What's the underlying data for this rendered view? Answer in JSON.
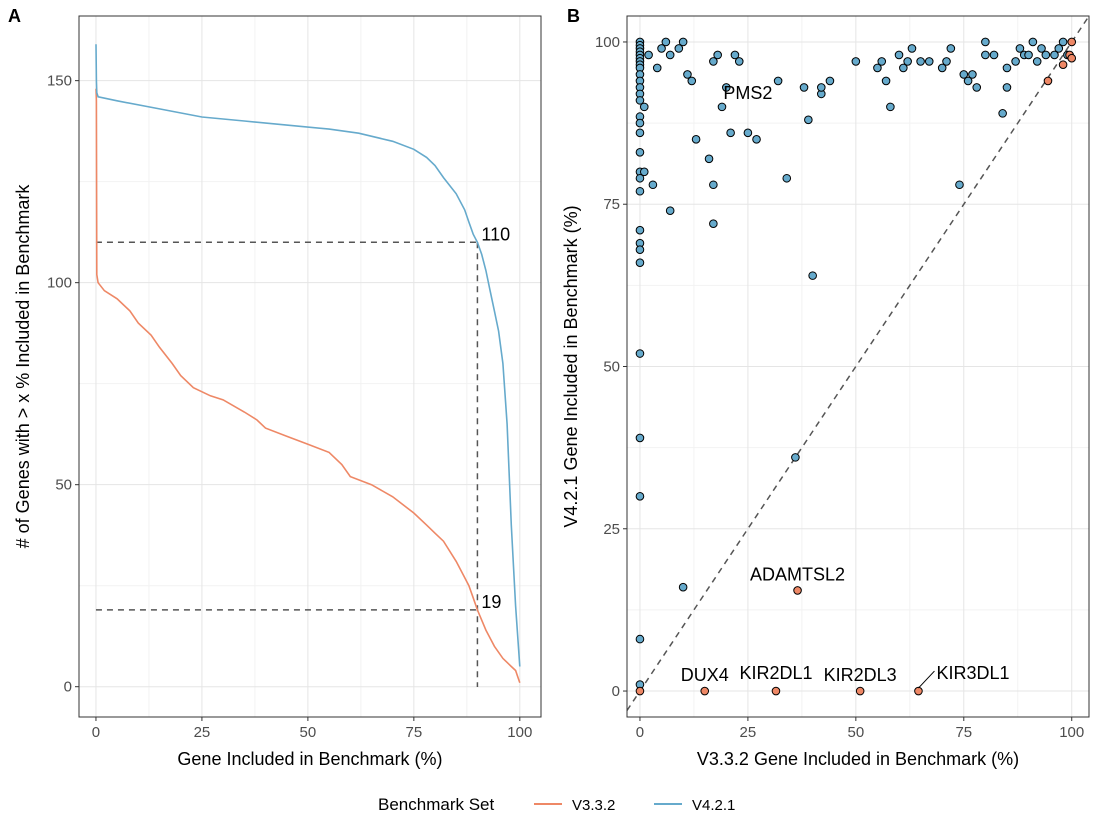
{
  "colors": {
    "v332": "#EE8866",
    "v421": "#66AACC",
    "grid_major": "#e5e5e5",
    "grid_minor": "#f2f2f2",
    "dashed": "#555555"
  },
  "legend": {
    "title": "Benchmark Set",
    "entries": [
      "V3.3.2",
      "V4.2.1"
    ]
  },
  "chart_data": [
    {
      "panel": "A",
      "type": "line",
      "title": "",
      "xlabel": "Gene Included in Benchmark (%)",
      "ylabel": "# of Genes with > x % Included in Benchmark",
      "xlim": [
        -4,
        105
      ],
      "ylim": [
        -7.5,
        166
      ],
      "xticks": [
        0,
        25,
        50,
        75,
        100
      ],
      "yticks": [
        0,
        50,
        100,
        150
      ],
      "grid": true,
      "series": [
        {
          "name": "V3.3.2",
          "color_key": "v332",
          "points": [
            [
              0,
              148
            ],
            [
              0.1,
              145
            ],
            [
              0.2,
              102
            ],
            [
              0.5,
              100
            ],
            [
              2,
              98
            ],
            [
              5,
              96
            ],
            [
              8,
              93
            ],
            [
              10,
              90
            ],
            [
              13,
              87
            ],
            [
              15,
              84
            ],
            [
              18,
              80
            ],
            [
              20,
              77
            ],
            [
              23,
              74
            ],
            [
              27,
              72
            ],
            [
              30,
              71
            ],
            [
              35,
              68
            ],
            [
              38,
              66
            ],
            [
              40,
              64
            ],
            [
              45,
              62
            ],
            [
              50,
              60
            ],
            [
              55,
              58
            ],
            [
              58,
              55
            ],
            [
              60,
              52
            ],
            [
              65,
              50
            ],
            [
              70,
              47
            ],
            [
              75,
              43
            ],
            [
              78,
              40
            ],
            [
              80,
              38
            ],
            [
              82,
              36
            ],
            [
              85,
              31
            ],
            [
              87,
              27
            ],
            [
              88,
              25
            ],
            [
              89,
              22
            ],
            [
              90,
              19
            ],
            [
              92,
              14
            ],
            [
              94,
              10
            ],
            [
              96,
              7
            ],
            [
              98,
              5
            ],
            [
              99,
              4
            ],
            [
              100,
              1
            ]
          ]
        },
        {
          "name": "V4.2.1",
          "color_key": "v421",
          "points": [
            [
              0,
              159
            ],
            [
              0.1,
              150
            ],
            [
              0.2,
              147
            ],
            [
              0.5,
              146
            ],
            [
              5,
              145
            ],
            [
              15,
              143
            ],
            [
              25,
              141
            ],
            [
              35,
              140
            ],
            [
              45,
              139
            ],
            [
              55,
              138
            ],
            [
              62,
              137
            ],
            [
              70,
              135
            ],
            [
              75,
              133
            ],
            [
              78,
              131
            ],
            [
              80,
              129
            ],
            [
              82,
              126
            ],
            [
              85,
              122
            ],
            [
              87,
              118
            ],
            [
              88,
              115
            ],
            [
              89,
              112
            ],
            [
              90,
              110
            ],
            [
              91,
              107
            ],
            [
              92,
              103
            ],
            [
              93,
              98
            ],
            [
              94,
              93
            ],
            [
              95,
              88
            ],
            [
              96,
              80
            ],
            [
              97,
              65
            ],
            [
              98,
              40
            ],
            [
              99,
              20
            ],
            [
              100,
              5
            ]
          ]
        }
      ],
      "reference_lines": [
        {
          "x": 90,
          "y": 110,
          "label": "110"
        },
        {
          "x": 90,
          "y": 19,
          "label": "19"
        }
      ]
    },
    {
      "panel": "B",
      "type": "scatter",
      "title": "",
      "xlabel": "V3.3.2 Gene Included in Benchmark (%)",
      "ylabel": "V4.2.1 Gene Included in Benchmark (%)",
      "xlim": [
        -3,
        104
      ],
      "ylim": [
        -4,
        104
      ],
      "xticks": [
        0,
        25,
        50,
        75,
        100
      ],
      "yticks": [
        0,
        25,
        50,
        75,
        100
      ],
      "grid": true,
      "identity_line": true,
      "series": [
        {
          "name": "V4.2.1",
          "color_key": "v421",
          "points": [
            [
              0,
              100
            ],
            [
              0,
              99.5
            ],
            [
              0,
              99
            ],
            [
              0,
              98.5
            ],
            [
              0,
              98
            ],
            [
              0,
              97.5
            ],
            [
              0,
              97
            ],
            [
              0,
              96.5
            ],
            [
              0,
              96
            ],
            [
              0,
              95
            ],
            [
              0,
              94
            ],
            [
              0,
              93
            ],
            [
              0,
              92
            ],
            [
              0,
              91
            ],
            [
              0,
              88.5
            ],
            [
              0,
              87.5
            ],
            [
              0,
              86
            ],
            [
              0,
              83
            ],
            [
              0,
              80
            ],
            [
              0,
              79
            ],
            [
              0,
              77
            ],
            [
              0,
              71
            ],
            [
              0,
              69
            ],
            [
              0,
              68
            ],
            [
              0,
              66
            ],
            [
              0,
              52
            ],
            [
              0,
              39
            ],
            [
              0,
              30
            ],
            [
              0,
              8
            ],
            [
              0,
              1
            ],
            [
              1,
              80
            ],
            [
              1,
              90
            ],
            [
              2,
              98
            ],
            [
              3,
              78
            ],
            [
              4,
              96
            ],
            [
              5,
              99
            ],
            [
              6,
              100
            ],
            [
              7,
              74
            ],
            [
              7,
              98
            ],
            [
              9,
              99
            ],
            [
              10,
              100
            ],
            [
              10,
              16
            ],
            [
              11,
              95
            ],
            [
              12,
              94
            ],
            [
              13,
              85
            ],
            [
              16,
              82
            ],
            [
              17,
              78
            ],
            [
              17,
              72
            ],
            [
              17,
              97
            ],
            [
              18,
              98
            ],
            [
              19,
              90
            ],
            [
              20,
              93
            ],
            [
              21,
              86
            ],
            [
              22,
              98
            ],
            [
              23,
              97
            ],
            [
              25,
              86
            ],
            [
              27,
              85
            ],
            [
              32,
              94
            ],
            [
              34,
              79
            ],
            [
              36,
              36
            ],
            [
              38,
              93
            ],
            [
              39,
              88
            ],
            [
              40,
              64
            ],
            [
              42,
              92
            ],
            [
              42,
              93
            ],
            [
              44,
              94
            ],
            [
              50,
              97
            ],
            [
              55,
              96
            ],
            [
              56,
              97
            ],
            [
              57,
              94
            ],
            [
              58,
              90
            ],
            [
              60,
              98
            ],
            [
              61,
              96
            ],
            [
              62,
              97
            ],
            [
              63,
              99
            ],
            [
              65,
              97
            ],
            [
              67,
              97
            ],
            [
              70,
              96
            ],
            [
              71,
              97
            ],
            [
              72,
              99
            ],
            [
              74,
              78
            ],
            [
              75,
              95
            ],
            [
              76,
              94
            ],
            [
              77,
              95
            ],
            [
              78,
              93
            ],
            [
              80,
              98
            ],
            [
              80,
              100
            ],
            [
              82,
              98
            ],
            [
              84,
              89
            ],
            [
              85,
              96
            ],
            [
              85,
              93
            ],
            [
              87,
              97
            ],
            [
              88,
              99
            ],
            [
              89,
              98
            ],
            [
              90,
              98
            ],
            [
              91,
              100
            ],
            [
              92,
              97
            ],
            [
              93,
              99
            ],
            [
              94,
              98
            ],
            [
              96,
              98
            ],
            [
              97,
              99
            ],
            [
              98,
              100
            ],
            [
              99,
              98
            ]
          ]
        },
        {
          "name": "V3.3.2",
          "color_key": "v332",
          "points": [
            [
              0,
              0
            ],
            [
              15,
              0
            ],
            [
              31.5,
              0
            ],
            [
              51,
              0
            ],
            [
              64.5,
              0
            ],
            [
              36.5,
              15.5
            ],
            [
              94.5,
              94
            ],
            [
              98,
              96.5
            ],
            [
              99.5,
              98
            ],
            [
              100,
              100
            ],
            [
              100,
              97.5
            ]
          ]
        }
      ],
      "annotations": [
        {
          "text": "PMS2",
          "x": 25,
          "y": 90
        },
        {
          "text": "ADAMTSL2",
          "x": 36.5,
          "y": 15.5
        },
        {
          "text": "DUX4",
          "x": 15,
          "y": 0
        },
        {
          "text": "KIR2DL1",
          "x": 31.5,
          "y": 0
        },
        {
          "text": "KIR2DL3",
          "x": 51,
          "y": 0
        },
        {
          "text": "KIR3DL1",
          "x": 64.5,
          "y": 0
        }
      ]
    }
  ],
  "panel_tags": [
    "A",
    "B"
  ]
}
